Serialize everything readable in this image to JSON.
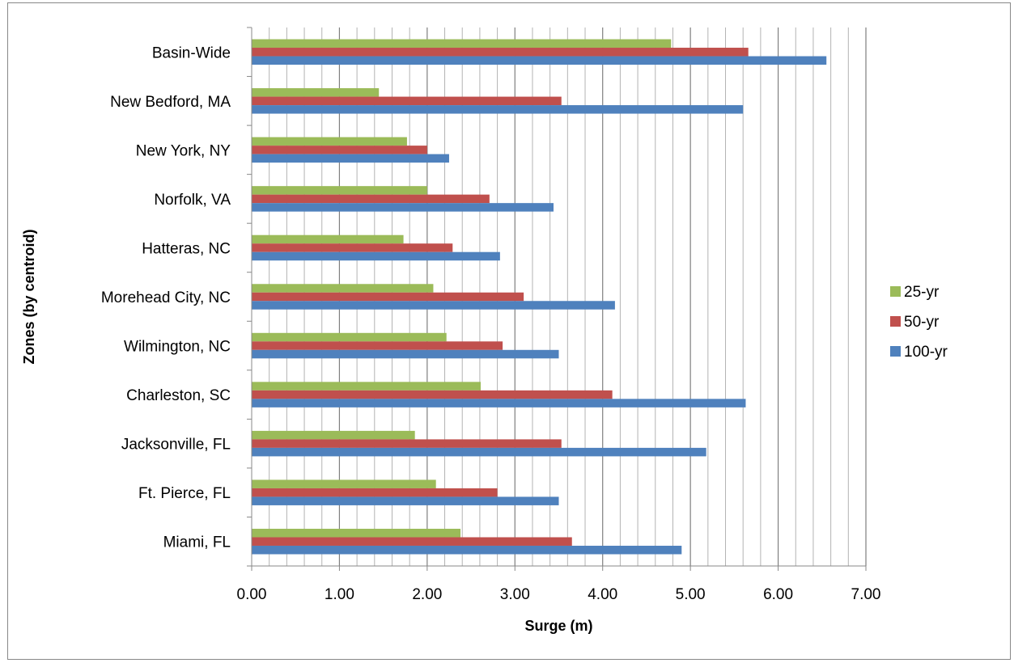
{
  "chart_data": {
    "type": "bar",
    "orientation": "horizontal",
    "title": "",
    "xlabel": "Surge (m)",
    "ylabel": "Zones (by centroid)",
    "categories": [
      "Basin-Wide",
      "New Bedford, MA",
      "New York, NY",
      "Norfolk, VA",
      "Hatteras, NC",
      "Morehead City, NC",
      "Wilmington, NC",
      "Charleston, SC",
      "Jacksonville, FL",
      "Ft. Pierce, FL",
      "Miami, FL"
    ],
    "series": [
      {
        "name": "25-yr",
        "color": "#9BBB59",
        "values": [
          4.78,
          1.45,
          1.77,
          2.0,
          1.73,
          2.07,
          2.22,
          2.61,
          1.86,
          2.1,
          2.38
        ]
      },
      {
        "name": "50-yr",
        "color": "#C0504D",
        "values": [
          5.66,
          3.53,
          2.0,
          2.71,
          2.29,
          3.1,
          2.86,
          4.11,
          3.53,
          2.8,
          3.65
        ]
      },
      {
        "name": "100-yr",
        "color": "#4F81BD",
        "values": [
          6.55,
          5.6,
          2.25,
          3.44,
          2.83,
          4.14,
          3.5,
          5.63,
          5.18,
          3.5,
          4.9
        ]
      }
    ],
    "xlim": [
      0,
      7
    ],
    "xticks": [
      "0.00",
      "1.00",
      "2.00",
      "3.00",
      "4.00",
      "5.00",
      "6.00",
      "7.00"
    ],
    "minor_grid_step": 0.2,
    "grid": true,
    "legend_position": "right"
  }
}
